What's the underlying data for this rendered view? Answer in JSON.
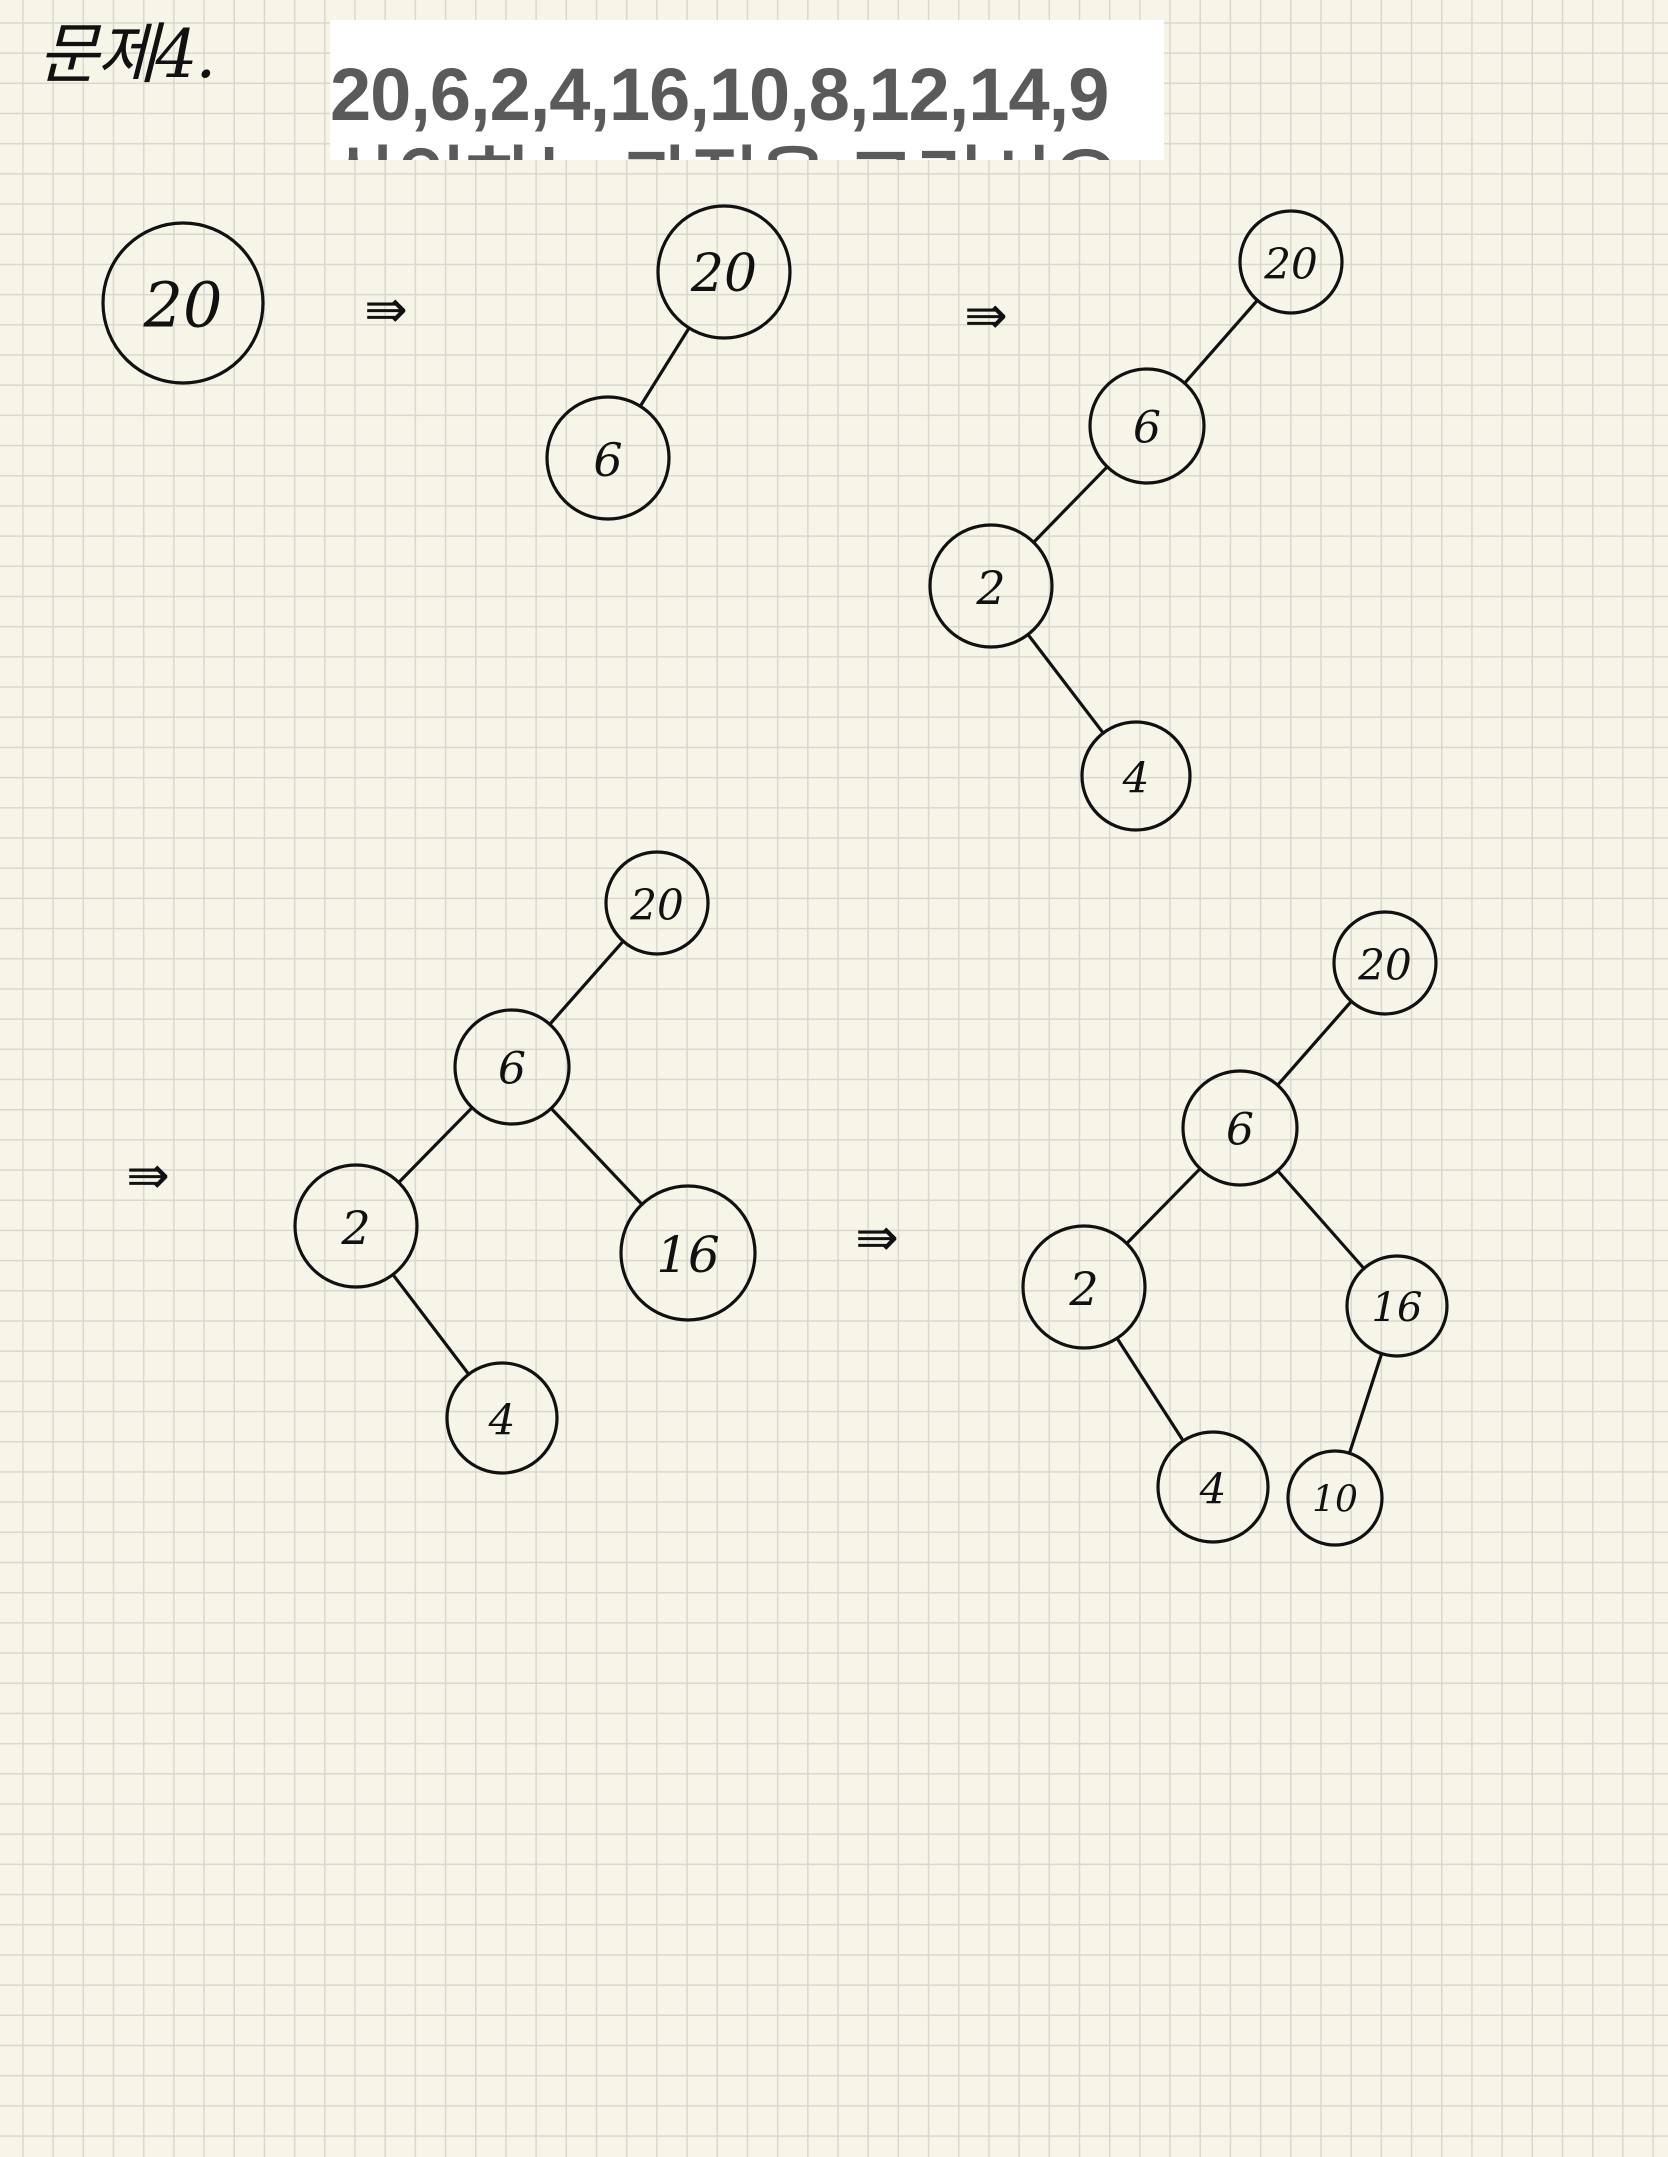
{
  "header": {
    "problem_label": "문제4.",
    "sequence": "20,6,2,4,16,10,8,12,14,9",
    "sequence_cut_line": "삽입하는 과정을 그리시오 - 각"
  },
  "arrow_symbol": "⇛",
  "steps": [
    {
      "nodes": [
        "20"
      ],
      "edges": []
    },
    {
      "nodes": [
        "20",
        "6"
      ],
      "edges": [
        [
          "20",
          "6"
        ]
      ]
    },
    {
      "nodes": [
        "20",
        "6",
        "2",
        "4"
      ],
      "edges": [
        [
          "20",
          "6"
        ],
        [
          "6",
          "2"
        ],
        [
          "2",
          "4"
        ]
      ]
    },
    {
      "nodes": [
        "20",
        "6",
        "2",
        "16",
        "4"
      ],
      "edges": [
        [
          "20",
          "6"
        ],
        [
          "6",
          "2"
        ],
        [
          "6",
          "16"
        ],
        [
          "2",
          "4"
        ]
      ]
    },
    {
      "nodes": [
        "20",
        "6",
        "2",
        "16",
        "4",
        "10"
      ],
      "edges": [
        [
          "20",
          "6"
        ],
        [
          "6",
          "2"
        ],
        [
          "6",
          "16"
        ],
        [
          "2",
          "4"
        ],
        [
          "16",
          "10"
        ]
      ]
    }
  ]
}
